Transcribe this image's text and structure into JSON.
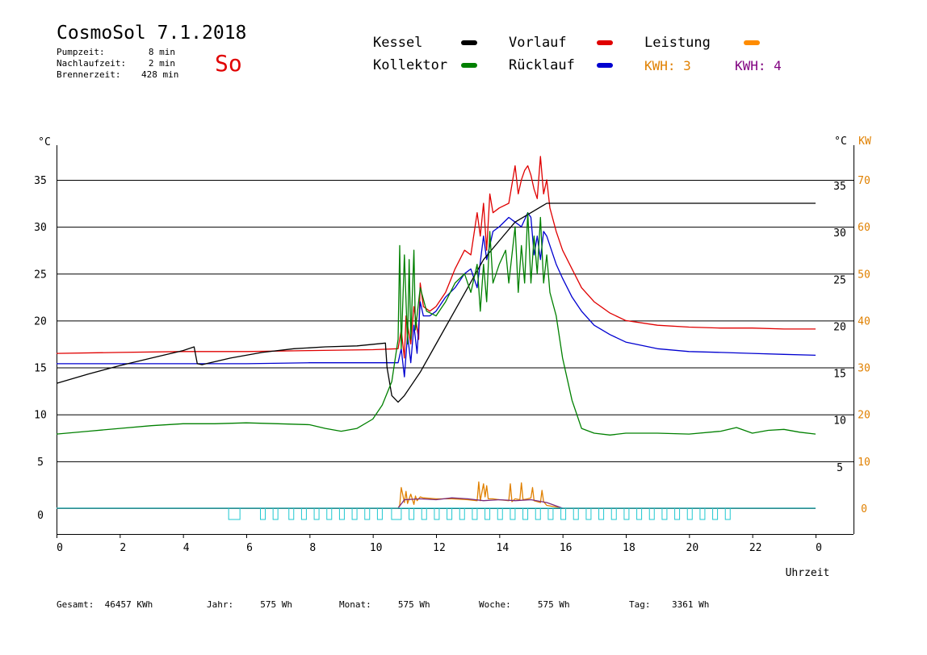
{
  "header": {
    "title": "CosmoSol 7.1.2018",
    "day": "So",
    "info": [
      {
        "label": "Pumpzeit:",
        "value": "8 min"
      },
      {
        "label": "Nachlaufzeit:",
        "value": "2 min"
      },
      {
        "label": "Brennerzeit:",
        "value": "428 min"
      }
    ]
  },
  "legend": {
    "kessel": {
      "label": "Kessel",
      "color": "#000000"
    },
    "kollektor": {
      "label": "Kollektor",
      "color": "#008000"
    },
    "vorlauf": {
      "label": "Vorlauf",
      "color": "#e00000"
    },
    "ruecklauf": {
      "label": "Rücklauf",
      "color": "#0000d0"
    },
    "leistung": {
      "label": "Leistung",
      "color": "#ff8c00"
    },
    "kwh1": {
      "label": "KWH: 3",
      "color": "#e08000"
    },
    "kwh2": {
      "label": "KWH: 4",
      "color": "#800080"
    }
  },
  "footer": [
    {
      "label": "Gesamt:",
      "value": "46457 KWh"
    },
    {
      "label": "Jahr:",
      "value": "575 Wh"
    },
    {
      "label": "Monat:",
      "value": "575 Wh"
    },
    {
      "label": "Woche:",
      "value": "575 Wh"
    },
    {
      "label": "Tag:",
      "value": "3361 Wh"
    }
  ],
  "chart_data": {
    "type": "line",
    "xlabel": "Uhrzeit",
    "ylabel": "°C",
    "ylabel_right": "°C",
    "ylabel_right2": "KW",
    "xlim": [
      0,
      24
    ],
    "ylim": [
      0,
      35
    ],
    "x_ticks": [
      "0",
      "2",
      "4",
      "6",
      "8",
      "10",
      "12",
      "14",
      "16",
      "18",
      "20",
      "22",
      "0"
    ],
    "y_ticks": [
      "0",
      "5",
      "10",
      "15",
      "20",
      "25",
      "30",
      "35"
    ],
    "y_ticks_right": [
      "5",
      "10",
      "15",
      "20",
      "25",
      "30",
      "35"
    ],
    "y_ticks_kw": [
      "0",
      "10",
      "20",
      "30",
      "40",
      "50",
      "60",
      "70"
    ],
    "grid": "horizontal",
    "series": [
      {
        "name": "Vorlauf",
        "color": "#e00000",
        "x": [
          0,
          2,
          4,
          6,
          8,
          10,
          10.8,
          10.9,
          11.0,
          11.05,
          11.2,
          11.3,
          11.45,
          11.5,
          11.6,
          11.8,
          12,
          12.3,
          12.6,
          12.9,
          13.1,
          13.3,
          13.4,
          13.5,
          13.6,
          13.7,
          13.8,
          14,
          14.3,
          14.5,
          14.6,
          14.7,
          14.8,
          14.9,
          15.0,
          15.1,
          15.2,
          15.3,
          15.4,
          15.5,
          15.6,
          15.8,
          16,
          16.3,
          16.6,
          17,
          17.5,
          18,
          19,
          20,
          21,
          22,
          23,
          24
        ],
        "y": [
          16.5,
          16.6,
          16.7,
          16.7,
          16.8,
          16.9,
          17.0,
          19.0,
          16.0,
          20.5,
          17.5,
          21.5,
          18.0,
          24.0,
          21.5,
          21.0,
          21.5,
          23.0,
          25.5,
          27.5,
          27.0,
          31.5,
          29.0,
          32.5,
          27.5,
          33.5,
          31.5,
          32.0,
          32.5,
          36.5,
          33.5,
          35.0,
          36.0,
          36.5,
          35.5,
          34.0,
          33.0,
          37.5,
          33.5,
          35.0,
          32.0,
          29.5,
          27.5,
          25.5,
          23.5,
          22.0,
          20.8,
          20.0,
          19.5,
          19.3,
          19.2,
          19.2,
          19.1,
          19.1
        ]
      },
      {
        "name": "Rücklauf",
        "color": "#0000d0",
        "x": [
          0,
          2,
          4,
          6,
          8,
          10,
          10.8,
          10.9,
          11.0,
          11.1,
          11.2,
          11.3,
          11.4,
          11.5,
          11.6,
          11.8,
          12,
          12.3,
          12.6,
          12.9,
          13.1,
          13.3,
          13.5,
          13.6,
          13.8,
          14,
          14.3,
          14.5,
          14.7,
          14.9,
          15.0,
          15.1,
          15.2,
          15.3,
          15.4,
          15.5,
          15.6,
          15.8,
          16,
          16.3,
          16.6,
          17,
          17.5,
          18,
          19,
          20,
          21,
          22,
          23,
          24
        ],
        "y": [
          15.4,
          15.4,
          15.4,
          15.4,
          15.5,
          15.5,
          15.5,
          17.0,
          14.0,
          18.5,
          15.5,
          19.5,
          16.5,
          22.0,
          20.5,
          20.5,
          21.0,
          22.5,
          23.5,
          25.0,
          25.5,
          23.5,
          29.0,
          26.5,
          29.5,
          30.0,
          31.0,
          30.5,
          30.0,
          31.5,
          31.0,
          27.0,
          29.0,
          26.5,
          29.5,
          29.0,
          28.0,
          26.0,
          24.5,
          22.5,
          21.0,
          19.5,
          18.5,
          17.7,
          17.0,
          16.7,
          16.6,
          16.5,
          16.4,
          16.3
        ]
      },
      {
        "name": "Kessel",
        "color": "#000000",
        "x": [
          0,
          1,
          2,
          3,
          4,
          4.35,
          4.45,
          4.6,
          5.5,
          6.5,
          7.5,
          8.5,
          9.5,
          10.4,
          10.45,
          10.6,
          10.8,
          11.0,
          11.5,
          12,
          12.5,
          13,
          13.5,
          14,
          14.5,
          15.0,
          15.5,
          15.6,
          16,
          18,
          20,
          22,
          24
        ],
        "y": [
          13.3,
          14.3,
          15.2,
          16.0,
          16.8,
          17.2,
          15.4,
          15.3,
          16.0,
          16.6,
          17.0,
          17.2,
          17.3,
          17.6,
          15.0,
          12.0,
          11.3,
          12.0,
          14.5,
          17.5,
          20.5,
          23.5,
          26.5,
          28.5,
          30.5,
          31.5,
          32.5,
          32.5,
          32.5,
          32.5,
          32.5,
          32.5,
          32.5
        ]
      },
      {
        "name": "Kollektor",
        "color": "#008000",
        "x": [
          0,
          1,
          2,
          3,
          4,
          5,
          6,
          7,
          8,
          8.5,
          9,
          9.5,
          10,
          10.3,
          10.6,
          10.8,
          10.85,
          10.9,
          11.0,
          11.1,
          11.15,
          11.2,
          11.3,
          11.35,
          11.5,
          11.7,
          12,
          12.3,
          12.6,
          12.9,
          13.1,
          13.3,
          13.4,
          13.5,
          13.6,
          13.7,
          13.8,
          14,
          14.2,
          14.3,
          14.5,
          14.6,
          14.7,
          14.8,
          14.9,
          15.0,
          15.1,
          15.2,
          15.3,
          15.4,
          15.5,
          15.6,
          15.8,
          16,
          16.3,
          16.6,
          17,
          17.5,
          18,
          19,
          20,
          21,
          21.5,
          22,
          22.5,
          23,
          23.5,
          24
        ],
        "y": [
          7.9,
          8.2,
          8.5,
          8.8,
          9.0,
          9.0,
          9.1,
          9.0,
          8.9,
          8.5,
          8.2,
          8.5,
          9.5,
          11.0,
          13.5,
          18.0,
          28.0,
          17.0,
          27.0,
          17.5,
          26.5,
          18.0,
          27.5,
          19.0,
          23.5,
          21.0,
          20.5,
          22.0,
          24.0,
          25.0,
          23.0,
          26.0,
          21.0,
          26.0,
          22.0,
          29.5,
          24.0,
          26.0,
          27.5,
          24.0,
          30.0,
          23.0,
          28.0,
          24.0,
          31.5,
          24.0,
          29.0,
          25.0,
          31.0,
          24.0,
          27.0,
          23.0,
          20.5,
          16.0,
          11.5,
          8.5,
          8.0,
          7.8,
          8.0,
          8.0,
          7.9,
          8.2,
          8.6,
          8.0,
          8.3,
          8.4,
          8.1,
          7.9
        ]
      },
      {
        "name": "Leistung",
        "color": "#e08000",
        "x": [
          0,
          10.8,
          10.85,
          10.9,
          11.0,
          11.05,
          11.1,
          11.2,
          11.3,
          11.35,
          11.4,
          11.5,
          11.6,
          12,
          12.5,
          13,
          13.3,
          13.35,
          13.4,
          13.5,
          13.55,
          13.6,
          13.65,
          13.8,
          14,
          14.3,
          14.35,
          14.4,
          14.5,
          14.65,
          14.7,
          14.75,
          14.9,
          15.0,
          15.05,
          15.1,
          15.3,
          15.35,
          15.4,
          15.5,
          16,
          24
        ],
        "y": [
          0,
          0,
          0.3,
          2.2,
          0.6,
          1.8,
          0.5,
          1.5,
          0.4,
          1.3,
          0.8,
          1.2,
          1.1,
          1.0,
          1.0,
          0.9,
          0.8,
          2.8,
          0.8,
          2.6,
          1.2,
          2.4,
          1.0,
          1.0,
          0.9,
          0.8,
          2.6,
          0.7,
          1.0,
          0.9,
          2.7,
          0.9,
          1.0,
          1.1,
          2.2,
          0.8,
          0.6,
          1.9,
          0.7,
          0.3,
          0,
          0
        ]
      },
      {
        "name": "Pumpe",
        "color": "#7a2a7a",
        "x": [
          0,
          10.8,
          11.0,
          11.5,
          12,
          12.5,
          13,
          13.5,
          14,
          14.5,
          15,
          15.5,
          16,
          24
        ],
        "y": [
          0,
          0,
          0.9,
          1.0,
          0.9,
          1.1,
          1.0,
          0.8,
          0.9,
          0.8,
          0.9,
          0.6,
          0,
          0
        ]
      },
      {
        "name": "Status",
        "color": "#20c8d0",
        "x": [
          0,
          24
        ],
        "y": [
          0,
          0
        ]
      }
    ]
  }
}
